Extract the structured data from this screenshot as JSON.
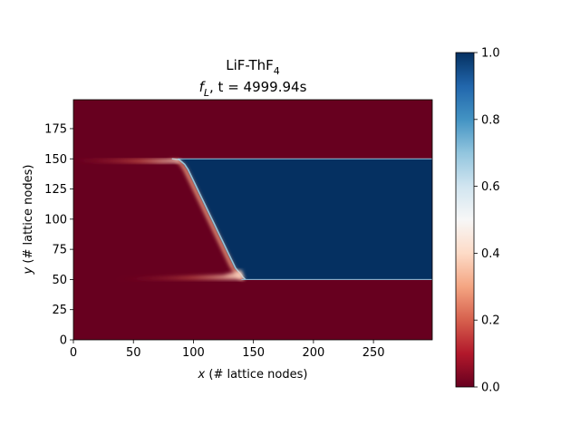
{
  "chart_data": {
    "type": "heatmap",
    "title_line1_main": "LiF-ThF",
    "title_line1_sub": "4",
    "title_line2": {
      "f": "f",
      "sub": "L",
      "rest": ", t = 4999.94s"
    },
    "xlabel": {
      "var": "x",
      "rest": " (# lattice nodes)"
    },
    "ylabel": {
      "var": "y",
      "rest": " (# lattice nodes)"
    },
    "xlim": [
      0,
      299
    ],
    "ylim": [
      0,
      199
    ],
    "xticks": [
      "0",
      "50",
      "100",
      "150",
      "200",
      "250"
    ],
    "yticks": [
      "0",
      "25",
      "50",
      "75",
      "100",
      "125",
      "150",
      "175"
    ],
    "colormap": "RdBu",
    "colorbar": {
      "range": [
        0.0,
        1.0
      ],
      "ticks": [
        "0.0",
        "0.2",
        "0.4",
        "0.6",
        "0.8",
        "1.0"
      ]
    },
    "regions": {
      "liquid_channel_y": [
        50,
        150
      ],
      "liquid_value": 1.0,
      "solid_value": 0.0,
      "front_top": {
        "x": 87,
        "y": 150
      },
      "front_bottom": {
        "x": 140,
        "y": 52
      }
    },
    "colors": {
      "solid": "#67001f",
      "liquid": "#053061",
      "interface_light": "#f7f7f7",
      "interface_warm": "#f4a582",
      "interface_cool": "#92c5de"
    }
  }
}
